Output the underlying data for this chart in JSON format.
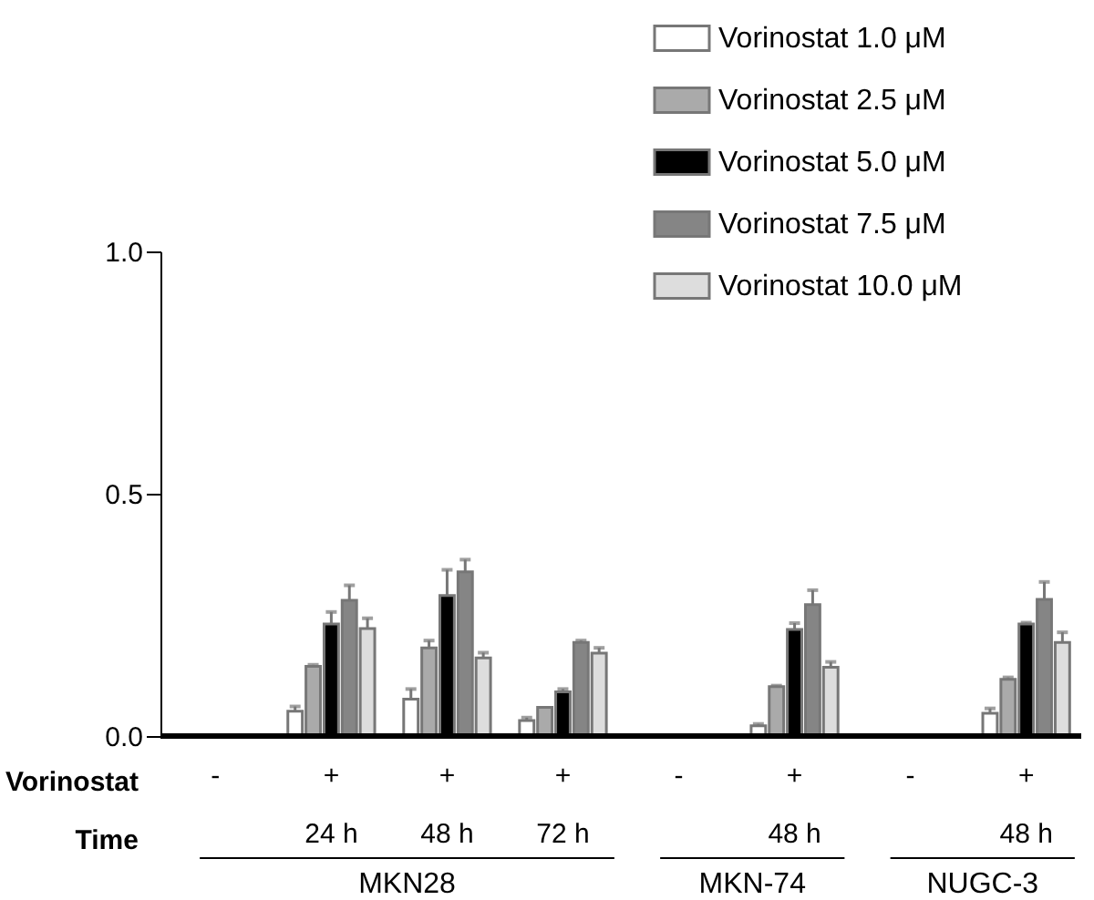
{
  "chart_data": {
    "type": "bar",
    "categories": [
      "-",
      "+\n24 h",
      "+\n48 h",
      "+\n72 h",
      "-",
      "+\n48 h",
      "-",
      "+\n48 h"
    ],
    "series": [
      {
        "name": "Vorinostat 1.0 μM",
        "color": "#ffffff",
        "values": [
          null,
          0.051,
          0.076,
          0.032,
          null,
          0.021,
          null,
          0.047
        ],
        "errors": [
          null,
          0.01,
          0.021,
          0.006,
          null,
          0.004,
          null,
          0.01
        ]
      },
      {
        "name": "Vorinostat 2.5 μM",
        "color": "#aaaaaa",
        "values": [
          null,
          0.144,
          0.182,
          0.059,
          null,
          0.102,
          null,
          0.117
        ],
        "errors": [
          null,
          0.003,
          0.015,
          null,
          null,
          0.002,
          null,
          0.004
        ]
      },
      {
        "name": "Vorinostat 5.0 μM",
        "color": "#000000",
        "values": [
          null,
          0.231,
          0.29,
          0.091,
          null,
          0.22,
          null,
          0.231
        ],
        "errors": [
          null,
          0.025,
          0.053,
          0.006,
          null,
          0.013,
          null,
          0.003
        ]
      },
      {
        "name": "Vorinostat 7.5 μM",
        "color": "#858585",
        "values": [
          null,
          0.28,
          0.339,
          0.193,
          null,
          0.271,
          null,
          0.282
        ],
        "errors": [
          null,
          0.031,
          0.025,
          0.004,
          null,
          0.03,
          null,
          0.036
        ]
      },
      {
        "name": "Vorinostat 10.0 μM",
        "color": "#dddddd",
        "values": [
          null,
          0.222,
          0.161,
          0.171,
          null,
          0.142,
          null,
          0.193
        ],
        "errors": [
          null,
          0.021,
          0.011,
          0.011,
          null,
          0.011,
          null,
          0.021
        ]
      }
    ],
    "ylim": [
      0,
      1.0
    ],
    "yticks": [
      {
        "value": 0,
        "label": "0.0"
      },
      0.5,
      {
        "value": 1.0,
        "label": "1.0"
      }
    ],
    "grid": false,
    "legend": "top right",
    "annotations": [
      "Vorinostat",
      "Time",
      "MKN28",
      "MKN-74",
      "NUGC-3"
    ]
  }
}
